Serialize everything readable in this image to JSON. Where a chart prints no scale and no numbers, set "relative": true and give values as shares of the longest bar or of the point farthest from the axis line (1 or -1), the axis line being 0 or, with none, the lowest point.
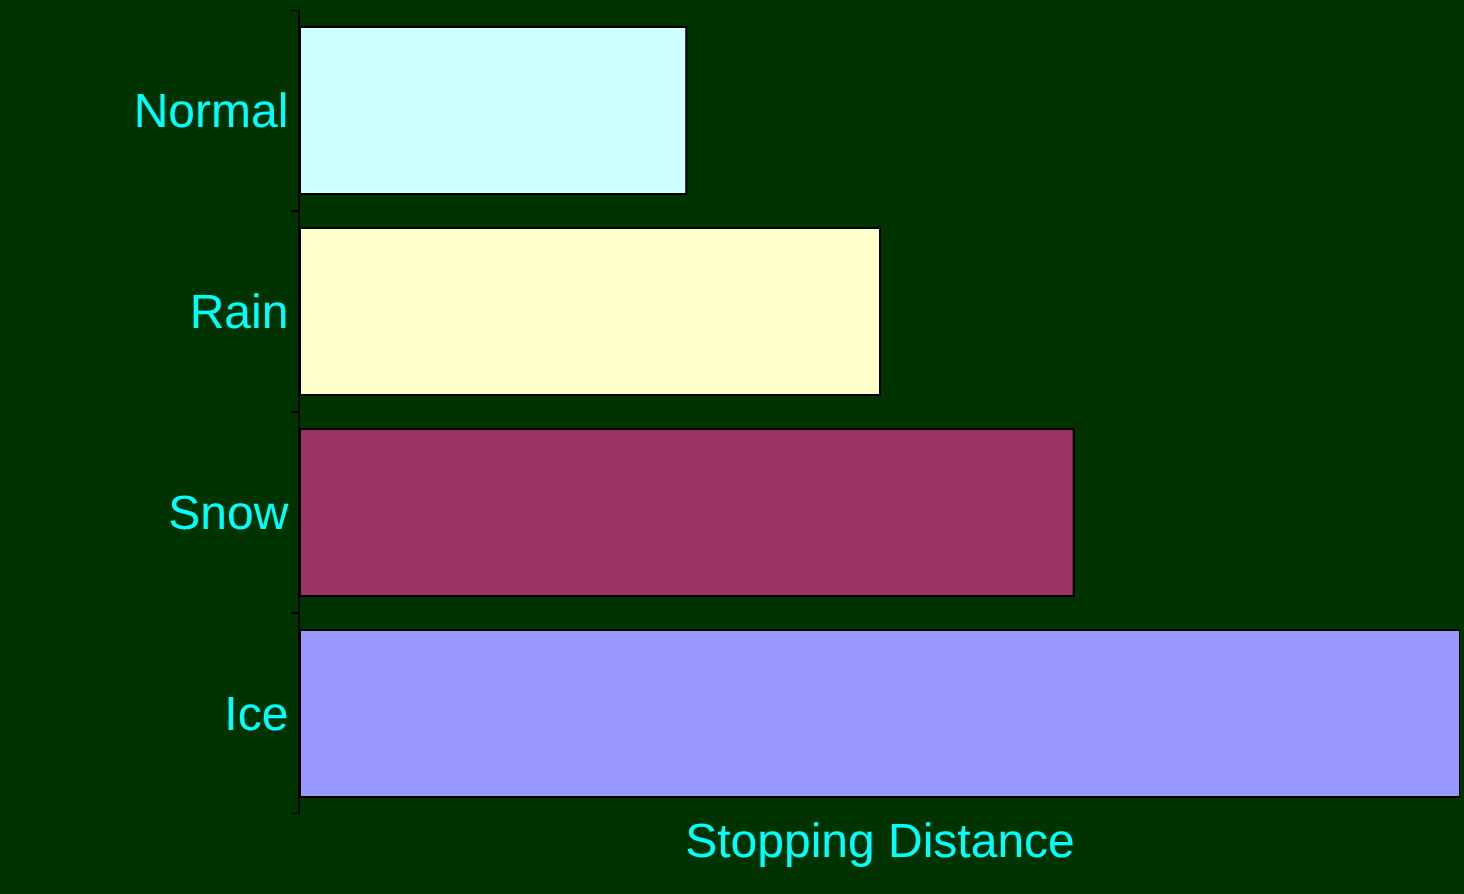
{
  "chart_data": {
    "type": "bar",
    "orientation": "horizontal",
    "relative": true,
    "categories": [
      "Normal",
      "Rain",
      "Snow",
      "Ice"
    ],
    "values": [
      0.333,
      0.5,
      0.667,
      1
    ],
    "colors": [
      "#ccffff",
      "#ffffcc",
      "#993366",
      "#9999ff"
    ],
    "xlabel": "Stopping Distance",
    "grid": false,
    "legend": false
  }
}
